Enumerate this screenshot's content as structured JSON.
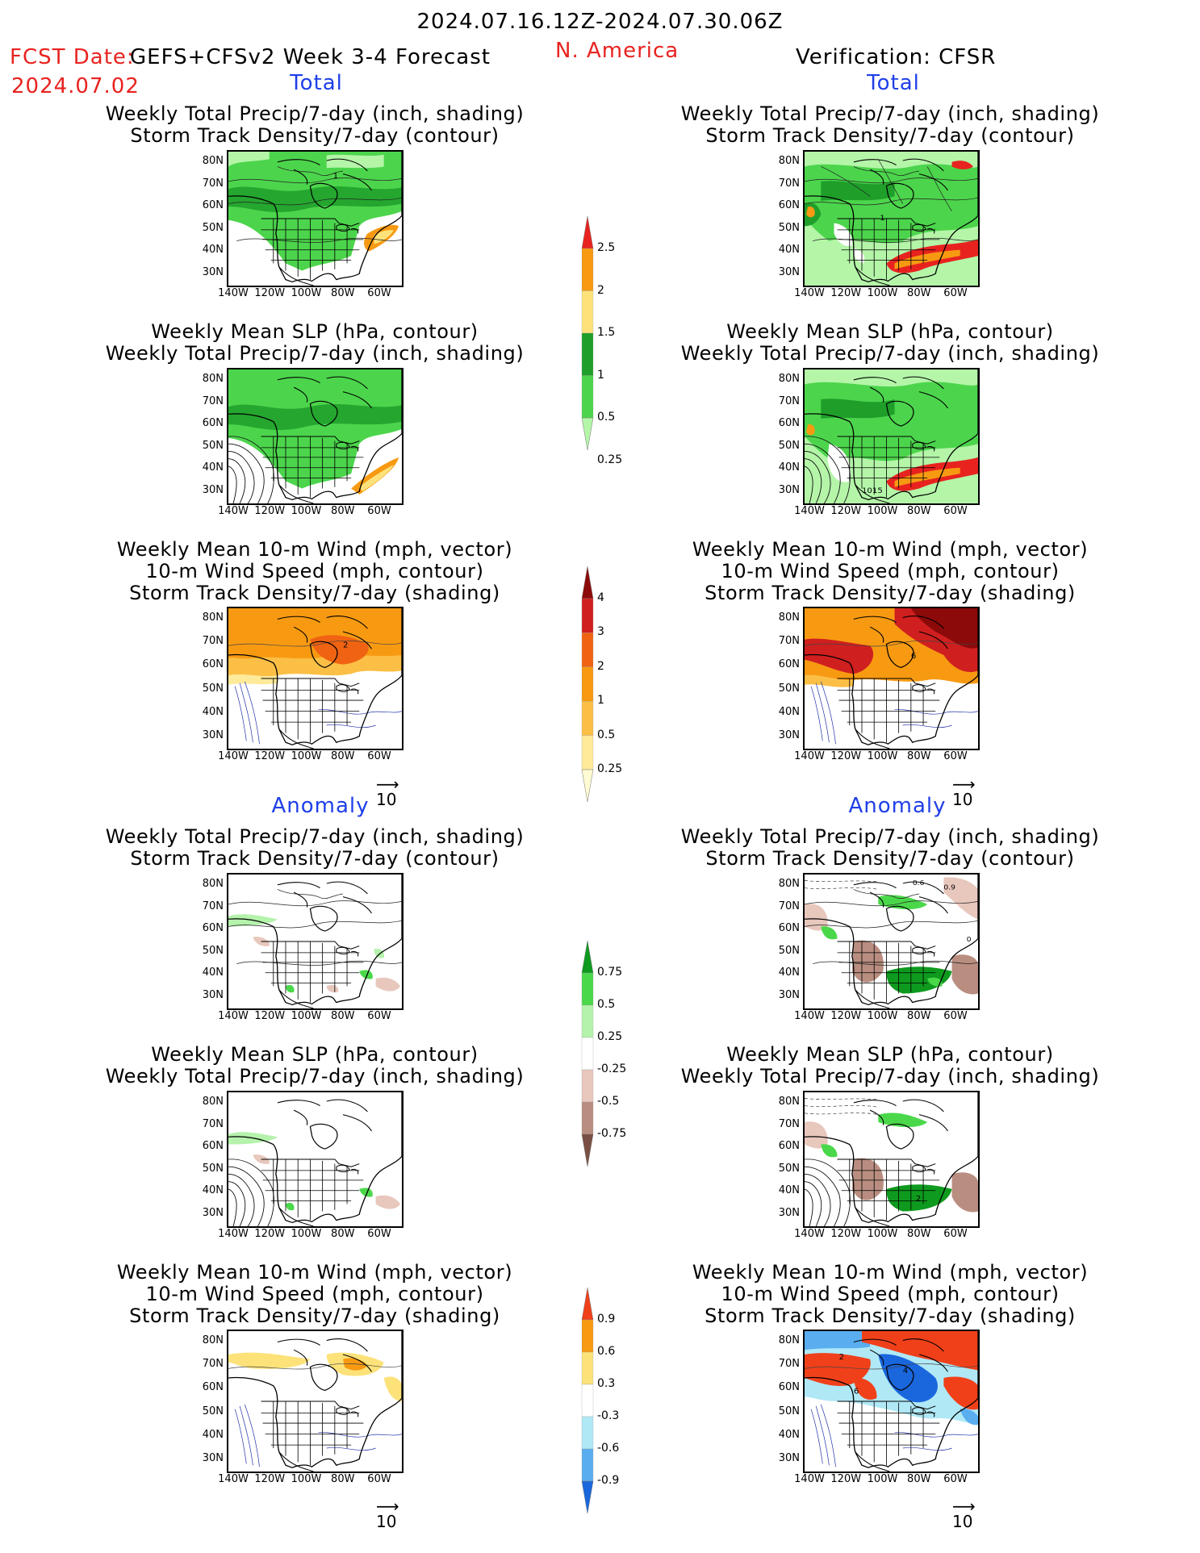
{
  "header": {
    "date_range": "2024.07.16.12Z-2024.07.30.06Z",
    "fcst_label": "FCST Date:",
    "fcst_date": "2024.07.02",
    "forecast_name": "GEFS+CFSv2 Week 3-4 Forecast",
    "region": "N. America",
    "verification": "Verification: CFSR"
  },
  "sections": {
    "total": "Total",
    "anomaly": "Anomaly"
  },
  "titles": {
    "precip_storm": [
      "Weekly Total Precip/7-day (inch, shading)",
      "Storm Track Density/7-day (contour)"
    ],
    "slp_precip": [
      "Weekly Mean SLP (hPa, contour)",
      "Weekly Total Precip/7-day (inch, shading)"
    ],
    "wind_storm": [
      "Weekly Mean 10-m Wind (mph, vector)",
      "10-m Wind Speed (mph, contour)",
      "Storm Track Density/7-day (shading)"
    ]
  },
  "axes": {
    "lat_ticks": [
      "80N",
      "70N",
      "60N",
      "50N",
      "40N",
      "30N"
    ],
    "lon_ticks": [
      "140W",
      "120W",
      "100W",
      "80W",
      "60W"
    ]
  },
  "vector_reference": "10",
  "map_labels": {
    "contour_1": "1",
    "contour_2": "2",
    "contour_1015": "1015",
    "contour_6": "6",
    "contour_4": "4",
    "contour_0": "0",
    "contour_06": "0.6",
    "contour_09": "0.9"
  },
  "colorbars": {
    "precip_total": {
      "labels": [
        "2.5",
        "2",
        "1.5",
        "1",
        "0.5",
        "0.25"
      ],
      "colors": [
        "#e8231f",
        "#f79a12",
        "#fde27a",
        "#1f9e2a",
        "#4cd54c",
        "#b4f5a8"
      ]
    },
    "storm_total": {
      "labels": [
        "4",
        "3",
        "2",
        "1",
        "0.5",
        "0.25"
      ],
      "colors": [
        "#8c0a0a",
        "#d01f1f",
        "#f06312",
        "#f79a12",
        "#fcbf45",
        "#feea99",
        "#fffbd2"
      ]
    },
    "precip_anom": {
      "labels": [
        "0.75",
        "0.5",
        "0.25",
        "-0.25",
        "-0.5",
        "-0.75"
      ],
      "colors": [
        "#0e9a1e",
        "#4ad84a",
        "#b5f2ac",
        "#ffffff",
        "#e8c7bd",
        "#b98e80",
        "#7a4f43"
      ]
    },
    "storm_anom": {
      "labels": [
        "0.9",
        "0.6",
        "0.3",
        "-0.3",
        "-0.6",
        "-0.9"
      ],
      "colors": [
        "#f0401a",
        "#f79a12",
        "#fde27a",
        "#ffffff",
        "#b0e8f6",
        "#5aaef0",
        "#1a66dd"
      ]
    }
  }
}
